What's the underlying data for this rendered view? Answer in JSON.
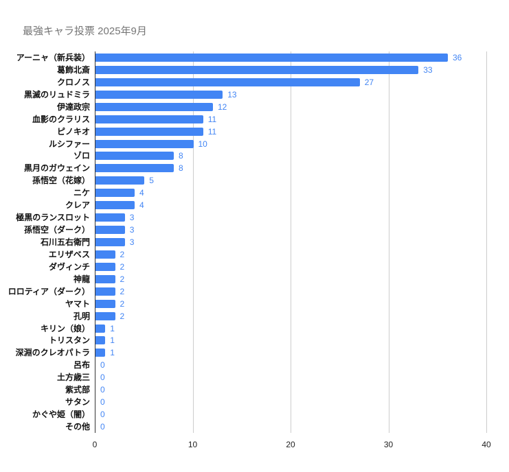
{
  "title": "最強キャラ投票 2025年9月",
  "chart_data": {
    "type": "bar",
    "orientation": "horizontal",
    "title": "最強キャラ投票 2025年9月",
    "categories": [
      "アーニャ（新兵装）",
      "葛飾北斎",
      "クロノス",
      "黒滅のリュドミラ",
      "伊達政宗",
      "血影のクラリス",
      "ピノキオ",
      "ルシファー",
      "ゾロ",
      "黒月のガウェイン",
      "孫悟空（花嫁）",
      "ニケ",
      "クレア",
      "極黒のランスロット",
      "孫悟空（ダーク）",
      "石川五右衛門",
      "エリザベス",
      "ダヴィンチ",
      "神龍",
      "ロロティア（ダーク）",
      "ヤマト",
      "孔明",
      "キリン（娘）",
      "トリスタン",
      "深淵のクレオパトラ",
      "呂布",
      "土方歳三",
      "紫式部",
      "サタン",
      "かぐや姫（闇）",
      "その他"
    ],
    "values": [
      36,
      33,
      27,
      13,
      12,
      11,
      11,
      10,
      8,
      8,
      5,
      4,
      4,
      3,
      3,
      3,
      2,
      2,
      2,
      2,
      2,
      2,
      1,
      1,
      1,
      0,
      0,
      0,
      0,
      0,
      0
    ],
    "xlabel": "",
    "ylabel": "",
    "xlim": [
      0,
      40
    ],
    "xticks": [
      0,
      10,
      20,
      30,
      40
    ],
    "grid": true,
    "legend": "none",
    "colors": {
      "bar": "#4285f4",
      "value_label": "#4285f4",
      "title": "#757575",
      "category_label": "#111111",
      "axis_tick_label": "#222222",
      "gridline": "#cccccc",
      "axis_line": "#333333",
      "background": "#ffffff"
    }
  }
}
